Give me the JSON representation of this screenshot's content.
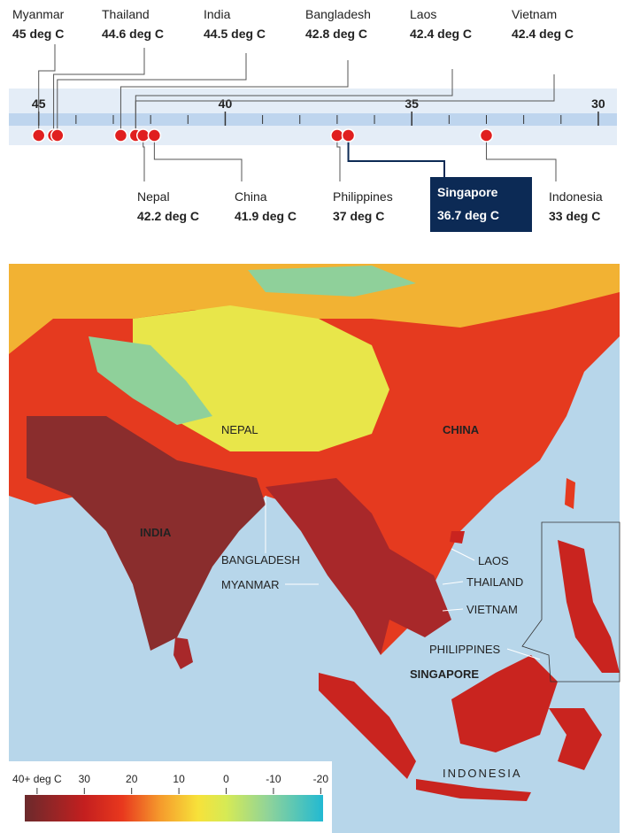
{
  "chart_data": {
    "type": "dot",
    "categories": [
      "Myanmar",
      "Thailand",
      "India",
      "Bangladesh",
      "Laos",
      "Vietnam",
      "Nepal",
      "China",
      "Philippines",
      "Singapore",
      "Indonesia"
    ],
    "values": [
      45,
      44.6,
      44.5,
      42.8,
      42.4,
      42.4,
      42.2,
      41.9,
      37,
      36.7,
      33
    ],
    "value_labels": [
      "45 deg C",
      "44.6 deg C",
      "44.5 deg C",
      "42.8 deg C",
      "42.4 deg C",
      "42.4 deg C",
      "42.2 deg C",
      "41.9 deg C",
      "37 deg C",
      "36.7 deg C",
      "33 deg C"
    ],
    "color": "#e01f1f",
    "highlight": "Singapore",
    "highlight_color": "#0c2a55",
    "xlim": [
      45.8,
      29.5
    ],
    "xticks": [
      45,
      40,
      35,
      30
    ],
    "xticks_minor": [
      44,
      43,
      42,
      41,
      39,
      38,
      37,
      36,
      34,
      33,
      32,
      31
    ]
  },
  "map": {
    "labels": [
      "CHINA",
      "NEPAL",
      "INDIA",
      "BANGLADESH",
      "MYANMAR",
      "LAOS",
      "THAILAND",
      "VIETNAM",
      "PHILIPPINES",
      "SINGAPORE",
      "INDONESIA"
    ],
    "legend": {
      "lim": [
        42.6,
        -20.5
      ],
      "ticks": [
        {
          "value": 40,
          "label": "40+ deg C"
        },
        30,
        20,
        10,
        0,
        -10,
        -20
      ],
      "stops": [
        {
          "value": 42.6,
          "color": "#6b2a2c"
        },
        {
          "value": 30,
          "color": "#c41f1f"
        },
        {
          "value": 22,
          "color": "#e8381e"
        },
        {
          "value": 14,
          "color": "#f59a2c"
        },
        {
          "value": 6,
          "color": "#f7e23a"
        },
        {
          "value": 0,
          "color": "#d6ea55"
        },
        {
          "value": -9,
          "color": "#8fd39a"
        },
        {
          "value": -20.5,
          "color": "#22b9d2"
        }
      ]
    }
  }
}
